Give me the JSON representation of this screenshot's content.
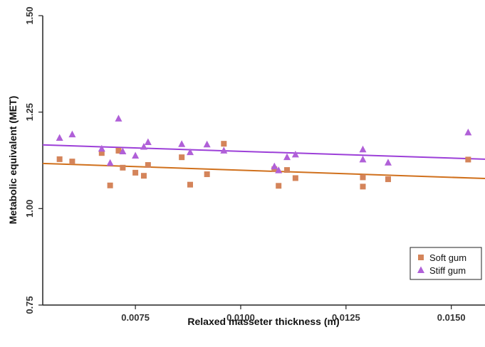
{
  "chart_data": {
    "type": "scatter",
    "xlabel": "Relaxed masseter thickness (m)",
    "ylabel": "Metabolic equivalent (MET)",
    "xlim": [
      0.0053,
      0.0158
    ],
    "ylim": [
      0.75,
      1.5
    ],
    "xticks": [
      "0.0075",
      "0.0100",
      "0.0125",
      "0.0150"
    ],
    "xtick_values": [
      0.0075,
      0.01,
      0.0125,
      0.015
    ],
    "yticks": [
      "0.75",
      "1.00",
      "1.25",
      "1.50"
    ],
    "ytick_values": [
      0.75,
      1.0,
      1.25,
      1.5
    ],
    "grid": false,
    "legend_position": "bottom-right",
    "series": [
      {
        "name": "Soft gum",
        "marker": "square",
        "color": "#D4845A",
        "trend_color": "#D0701C",
        "trend": [
          [
            0.0053,
            1.117
          ],
          [
            0.0158,
            1.078
          ]
        ],
        "points": [
          [
            0.0057,
            1.128
          ],
          [
            0.006,
            1.122
          ],
          [
            0.0067,
            1.144
          ],
          [
            0.0069,
            1.06
          ],
          [
            0.0071,
            1.15
          ],
          [
            0.0072,
            1.106
          ],
          [
            0.0075,
            1.093
          ],
          [
            0.0077,
            1.085
          ],
          [
            0.0078,
            1.113
          ],
          [
            0.0086,
            1.133
          ],
          [
            0.0088,
            1.062
          ],
          [
            0.0092,
            1.089
          ],
          [
            0.0096,
            1.168
          ],
          [
            0.0108,
            1.102
          ],
          [
            0.0109,
            1.059
          ],
          [
            0.0111,
            1.1
          ],
          [
            0.0113,
            1.079
          ],
          [
            0.0129,
            1.081
          ],
          [
            0.0129,
            1.057
          ],
          [
            0.0135,
            1.076
          ],
          [
            0.0154,
            1.127
          ]
        ]
      },
      {
        "name": "Stiff gum",
        "marker": "triangle",
        "color": "#B060D8",
        "trend_color": "#9C3FD8",
        "trend": [
          [
            0.0053,
            1.165
          ],
          [
            0.0158,
            1.128
          ]
        ],
        "points": [
          [
            0.0057,
            1.183
          ],
          [
            0.006,
            1.192
          ],
          [
            0.0067,
            1.155
          ],
          [
            0.0069,
            1.118
          ],
          [
            0.0071,
            1.233
          ],
          [
            0.0072,
            1.148
          ],
          [
            0.0075,
            1.137
          ],
          [
            0.0077,
            1.16
          ],
          [
            0.0078,
            1.172
          ],
          [
            0.0086,
            1.167
          ],
          [
            0.0088,
            1.146
          ],
          [
            0.0092,
            1.166
          ],
          [
            0.0096,
            1.15
          ],
          [
            0.0108,
            1.109
          ],
          [
            0.0109,
            1.099
          ],
          [
            0.0111,
            1.133
          ],
          [
            0.0113,
            1.14
          ],
          [
            0.0129,
            1.153
          ],
          [
            0.0129,
            1.127
          ],
          [
            0.0135,
            1.119
          ],
          [
            0.0154,
            1.197
          ]
        ]
      }
    ]
  }
}
